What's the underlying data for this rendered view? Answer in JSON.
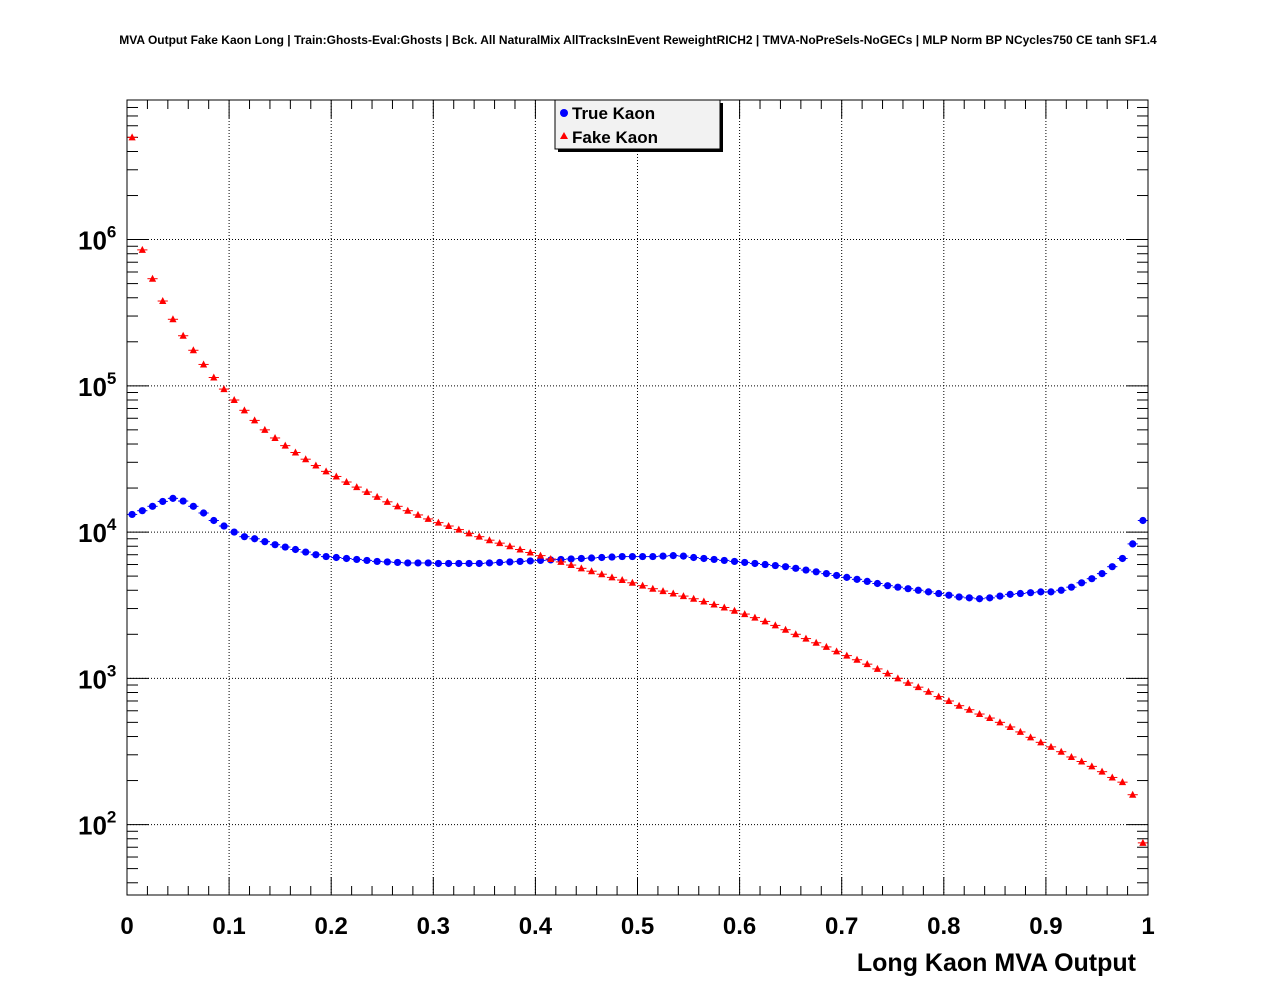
{
  "chart_data": {
    "type": "scatter",
    "title": "MVA Output Fake Kaon Long | Train:Ghosts-Eval:Ghosts | Bck. All NaturalMix AllTracksInEvent ReweightRICH2 | TMVA-NoPreSels-NoGECs | MLP Norm BP NCycles750 CE tanh SF1.4",
    "xlabel": "Long Kaon MVA Output",
    "ylabel": "",
    "xlim": [
      0,
      1
    ],
    "ylim": [
      33,
      9000000
    ],
    "yscale": "log",
    "grid": true,
    "legend_position": "top-center",
    "x_ticks": [
      "0",
      "0.1",
      "0.2",
      "0.3",
      "0.4",
      "0.5",
      "0.6",
      "0.7",
      "0.8",
      "0.9",
      "1"
    ],
    "y_ticks": [
      {
        "base": "10",
        "exp": "2",
        "value": 100
      },
      {
        "base": "10",
        "exp": "3",
        "value": 1000
      },
      {
        "base": "10",
        "exp": "4",
        "value": 10000
      },
      {
        "base": "10",
        "exp": "5",
        "value": 100000
      },
      {
        "base": "10",
        "exp": "6",
        "value": 1000000
      }
    ],
    "x": [
      0.005,
      0.015,
      0.025,
      0.035,
      0.045,
      0.055,
      0.065,
      0.075,
      0.085,
      0.095,
      0.105,
      0.115,
      0.125,
      0.135,
      0.145,
      0.155,
      0.165,
      0.175,
      0.185,
      0.195,
      0.205,
      0.215,
      0.225,
      0.235,
      0.245,
      0.255,
      0.265,
      0.275,
      0.285,
      0.295,
      0.305,
      0.315,
      0.325,
      0.335,
      0.345,
      0.355,
      0.365,
      0.375,
      0.385,
      0.395,
      0.405,
      0.415,
      0.425,
      0.435,
      0.445,
      0.455,
      0.465,
      0.475,
      0.485,
      0.495,
      0.505,
      0.515,
      0.525,
      0.535,
      0.545,
      0.555,
      0.565,
      0.575,
      0.585,
      0.595,
      0.605,
      0.615,
      0.625,
      0.635,
      0.645,
      0.655,
      0.665,
      0.675,
      0.685,
      0.695,
      0.705,
      0.715,
      0.725,
      0.735,
      0.745,
      0.755,
      0.765,
      0.775,
      0.785,
      0.795,
      0.805,
      0.815,
      0.825,
      0.835,
      0.845,
      0.855,
      0.865,
      0.875,
      0.885,
      0.895,
      0.905,
      0.915,
      0.925,
      0.935,
      0.945,
      0.955,
      0.965,
      0.975,
      0.985,
      0.995
    ],
    "series": [
      {
        "name": "True Kaon",
        "color": "#0000ff",
        "marker": "circle",
        "values": [
          13200,
          14000,
          15000,
          16200,
          17000,
          16300,
          15000,
          13500,
          12000,
          11000,
          10000,
          9300,
          9000,
          8600,
          8200,
          7900,
          7600,
          7300,
          7000,
          6800,
          6700,
          6600,
          6500,
          6400,
          6300,
          6250,
          6200,
          6150,
          6150,
          6150,
          6100,
          6100,
          6100,
          6100,
          6100,
          6150,
          6200,
          6250,
          6300,
          6350,
          6400,
          6450,
          6500,
          6550,
          6600,
          6650,
          6700,
          6750,
          6800,
          6800,
          6800,
          6800,
          6850,
          6900,
          6850,
          6700,
          6600,
          6500,
          6400,
          6300,
          6200,
          6100,
          6000,
          5900,
          5800,
          5650,
          5500,
          5350,
          5200,
          5050,
          4900,
          4750,
          4600,
          4450,
          4300,
          4200,
          4100,
          4000,
          3900,
          3800,
          3700,
          3600,
          3550,
          3500,
          3550,
          3650,
          3750,
          3800,
          3850,
          3900,
          3900,
          4000,
          4200,
          4500,
          4800,
          5200,
          5800,
          6600,
          8300,
          12000
        ]
      },
      {
        "name": "Fake Kaon",
        "color": "#ff0000",
        "marker": "triangle",
        "values": [
          5000000,
          850000,
          540000,
          380000,
          285000,
          220000,
          175000,
          140000,
          114000,
          95000,
          80000,
          68000,
          58000,
          50000,
          44000,
          39000,
          35000,
          31500,
          28500,
          26000,
          24000,
          22000,
          20300,
          18800,
          17400,
          16100,
          15000,
          14000,
          13100,
          12300,
          11600,
          11000,
          10400,
          9800,
          9300,
          8800,
          8400,
          8000,
          7600,
          7250,
          6900,
          6550,
          6250,
          5950,
          5650,
          5400,
          5150,
          4900,
          4700,
          4500,
          4300,
          4100,
          3950,
          3800,
          3650,
          3500,
          3350,
          3200,
          3050,
          2900,
          2750,
          2600,
          2450,
          2300,
          2150,
          2000,
          1870,
          1750,
          1640,
          1530,
          1430,
          1340,
          1250,
          1160,
          1080,
          1000,
          930,
          870,
          810,
          750,
          700,
          650,
          610,
          570,
          535,
          500,
          465,
          430,
          395,
          365,
          340,
          315,
          290,
          270,
          250,
          230,
          210,
          195,
          160,
          75
        ]
      }
    ]
  }
}
